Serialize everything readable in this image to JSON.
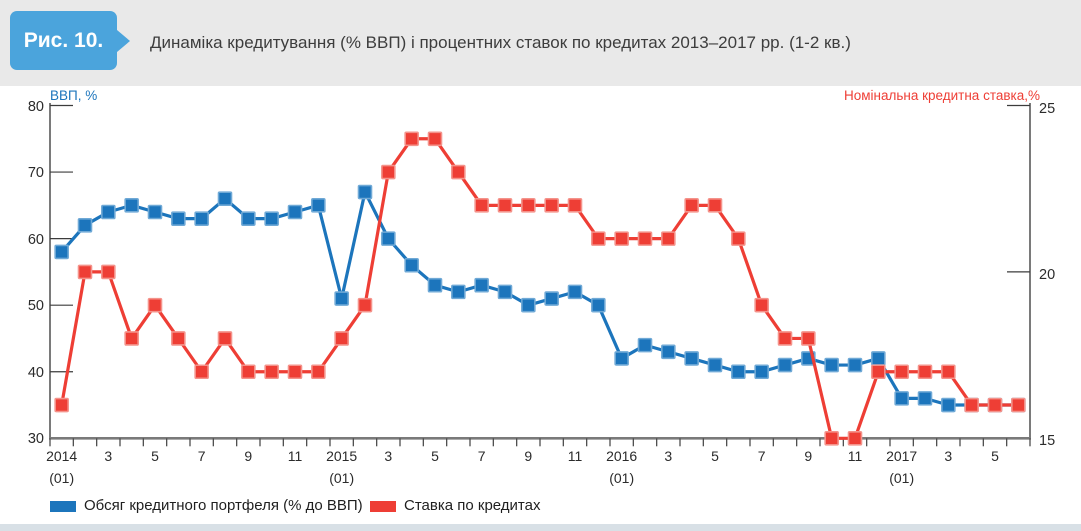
{
  "header": {
    "badge": "Рис. 10.",
    "title": "Динаміка кредитування (% ВВП) і процентних ставок по кредитах 2013–2017 рр. (1-2 кв.)"
  },
  "chart_data": {
    "type": "line",
    "x_description": "monthly categories 2014-01 through 2017-06, 42 points",
    "x_tick_labels": [
      {
        "label": "2014",
        "sub": "(01)"
      },
      {
        "label": "3"
      },
      {
        "label": "5"
      },
      {
        "label": "7"
      },
      {
        "label": "9"
      },
      {
        "label": "11"
      },
      {
        "label": "2015",
        "sub": "(01)"
      },
      {
        "label": "3"
      },
      {
        "label": "5"
      },
      {
        "label": "7"
      },
      {
        "label": "9"
      },
      {
        "label": "11"
      },
      {
        "label": "2016",
        "sub": "(01)"
      },
      {
        "label": "3"
      },
      {
        "label": "5"
      },
      {
        "label": "7"
      },
      {
        "label": "9"
      },
      {
        "label": "11"
      },
      {
        "label": "2017",
        "sub": "(01)"
      },
      {
        "label": "3"
      },
      {
        "label": "5"
      }
    ],
    "left_axis": {
      "title": "ВВП, %",
      "color": "#1c75bc",
      "min": 30,
      "max": 80,
      "ticks": [
        80,
        70,
        60,
        50,
        40,
        30
      ]
    },
    "right_axis": {
      "title": "Номінальна кредитна ставка,%",
      "color": "#ee3e35",
      "min": 15,
      "max": 25,
      "ticks": [
        25,
        20,
        15
      ]
    },
    "grid": "inner tick stubs only, no full gridlines",
    "legend_position": "bottom-left",
    "series": [
      {
        "name": "Обсяг кредитного портфеля (% до ВВП)",
        "axis": "left",
        "color": "#1c75bc",
        "marker_stroke": "#6fa9d6",
        "values": [
          58,
          62,
          64,
          65,
          64,
          63,
          63,
          66,
          63,
          63,
          64,
          65,
          51,
          67,
          60,
          56,
          53,
          52,
          53,
          52,
          50,
          51,
          52,
          50,
          42,
          44,
          43,
          42,
          41,
          40,
          40,
          41,
          42,
          41,
          41,
          42,
          36,
          36,
          35,
          35,
          35,
          35
        ]
      },
      {
        "name": "Ставка по кредитах",
        "axis": "right",
        "color": "#ee3e35",
        "marker_stroke": "#f4938b",
        "values": [
          16,
          20,
          20,
          18,
          19,
          18,
          17,
          18,
          17,
          17,
          17,
          17,
          18,
          19,
          23,
          24,
          24,
          23,
          22,
          22,
          22,
          22,
          22,
          21,
          21,
          21,
          21,
          22,
          22,
          21,
          19,
          18,
          18,
          15,
          15,
          17,
          17,
          17,
          17,
          16,
          16,
          16
        ]
      }
    ]
  }
}
